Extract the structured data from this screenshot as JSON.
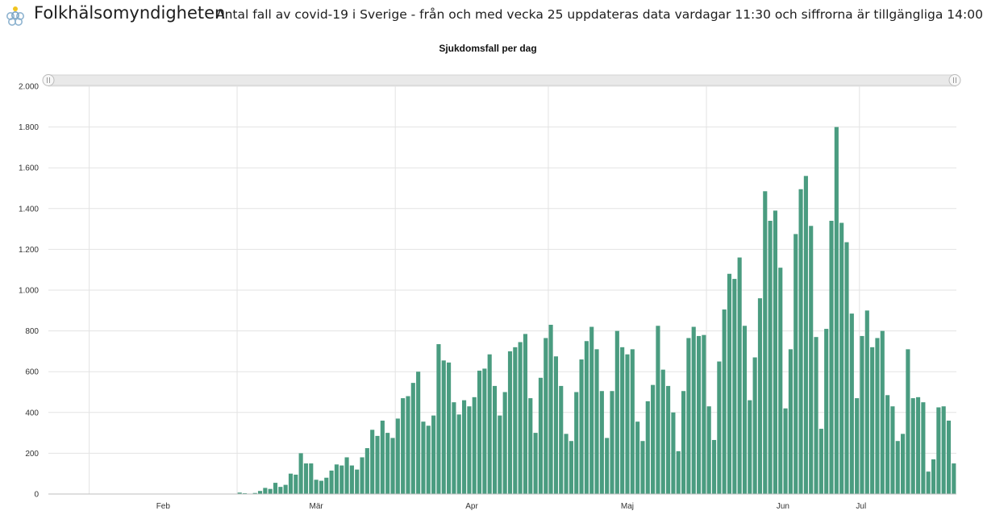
{
  "header": {
    "brand": "Folkhälsomyndigheten",
    "subtitle": "Antal fall av covid-19 i Sverige - från och med vecka 25 uppdateras data vardagar 11:30 och siffrorna är tillgängliga 14:00",
    "logo_icon": "flower-rings-icon"
  },
  "colors": {
    "bar": "#4a9c80",
    "grid": "#e3e3e3",
    "scrollbar": "#e9e9e9"
  },
  "chart_data": {
    "type": "bar",
    "title": "Sjukdomsfall per dag",
    "xlabel": "",
    "ylabel": "",
    "ylim": [
      0,
      2000
    ],
    "yticks": [
      0,
      200,
      400,
      600,
      800,
      1000,
      1200,
      1400,
      1600,
      1800,
      2000
    ],
    "ytick_labels": [
      "0",
      "200",
      "400",
      "600",
      "800",
      "1.000",
      "1.200",
      "1.400",
      "1.600",
      "1.800",
      "2.000"
    ],
    "grid": true,
    "month_labels": [
      "Feb",
      "Mär",
      "Apr",
      "Maj",
      "Jun",
      "Jul"
    ],
    "month_boundaries": [
      "2020-02-01",
      "2020-03-01",
      "2020-04-01",
      "2020-05-01",
      "2020-06-01",
      "2020-07-01"
    ],
    "x_start": "2020-01-24",
    "x_end": "2020-07-03",
    "values": [
      1,
      0,
      0,
      0,
      0,
      0,
      0,
      0,
      0,
      0,
      0,
      0,
      0,
      0,
      0,
      0,
      0,
      0,
      0,
      0,
      0,
      0,
      0,
      0,
      0,
      0,
      0,
      0,
      0,
      0,
      0,
      0,
      0,
      0,
      0,
      0,
      0,
      7,
      4,
      0,
      5,
      15,
      30,
      25,
      55,
      35,
      45,
      100,
      95,
      200,
      150,
      150,
      70,
      65,
      80,
      115,
      145,
      140,
      180,
      140,
      120,
      180,
      225,
      315,
      285,
      360,
      300,
      275,
      370,
      470,
      480,
      545,
      600,
      355,
      335,
      385,
      735,
      655,
      645,
      450,
      390,
      460,
      430,
      475,
      605,
      615,
      685,
      530,
      385,
      500,
      700,
      720,
      745,
      785,
      470,
      300,
      570,
      765,
      830,
      675,
      530,
      295,
      260,
      500,
      660,
      750,
      820,
      710,
      505,
      275,
      505,
      800,
      720,
      685,
      710,
      355,
      260,
      455,
      535,
      825,
      610,
      530,
      400,
      210,
      505,
      765,
      820,
      775,
      780,
      430,
      265,
      650,
      905,
      1080,
      1055,
      1160,
      825,
      460,
      670,
      960,
      1485,
      1340,
      1390,
      1110,
      420,
      710,
      1275,
      1495,
      1560,
      1315,
      770,
      320,
      810,
      1340,
      1800,
      1330,
      1235,
      885,
      470,
      775,
      900,
      720,
      765,
      800,
      485,
      430,
      260,
      295,
      710,
      470,
      475,
      450,
      110,
      170,
      425,
      430,
      360,
      150
    ]
  }
}
